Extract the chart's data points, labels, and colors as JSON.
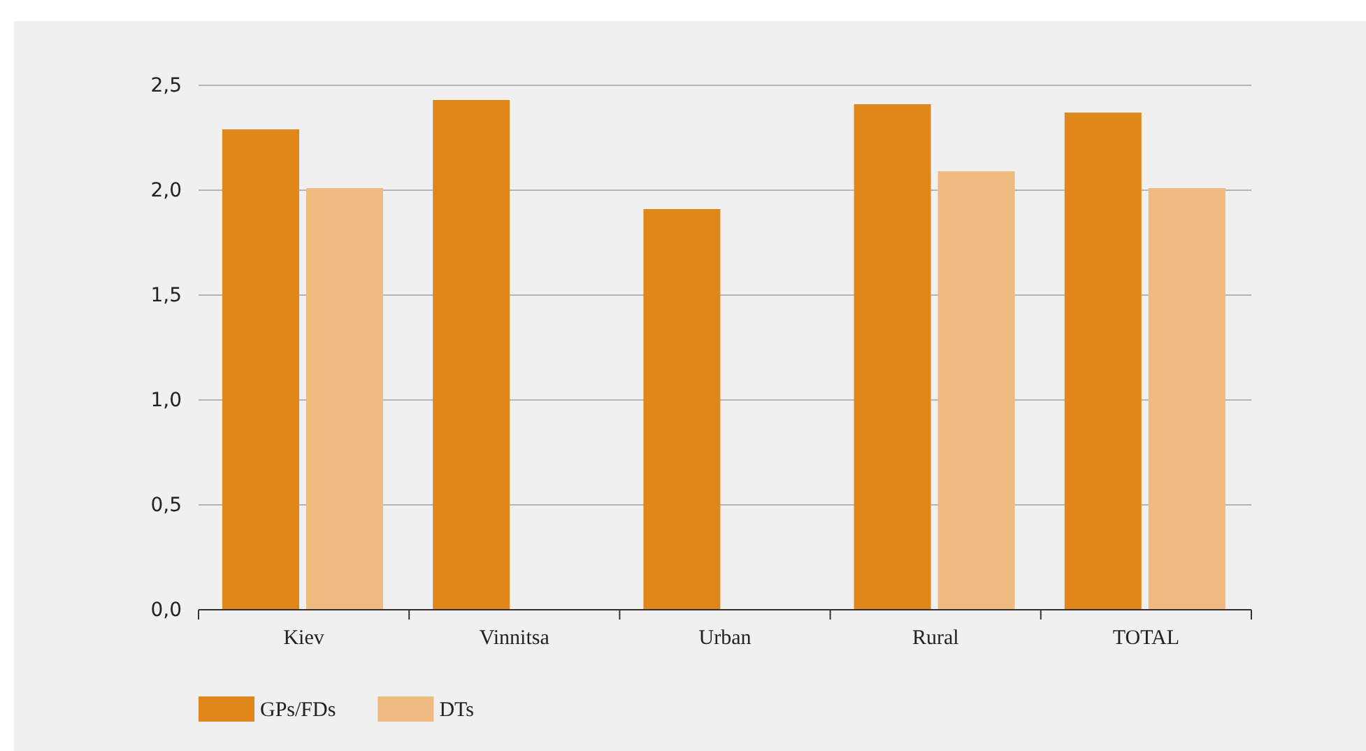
{
  "chart_data": {
    "type": "bar",
    "categories": [
      "Kiev",
      "Vinnitsa",
      "Urban",
      "Rural",
      "TOTAL"
    ],
    "series": [
      {
        "name": "GPs/FDs",
        "color": "#e0861a",
        "values": [
          2.29,
          2.43,
          1.91,
          2.41,
          2.37
        ]
      },
      {
        "name": "DTs",
        "color": "#f0bb80",
        "values": [
          2.01,
          null,
          null,
          2.09,
          2.01
        ]
      }
    ],
    "ylim": [
      0,
      2.5
    ],
    "yticks": [
      {
        "value": 0,
        "label": "0,0"
      },
      {
        "value": 0.5,
        "label": "0,5"
      },
      {
        "value": 1,
        "label": "1,0"
      },
      {
        "value": 1.5,
        "label": "1,5"
      },
      {
        "value": 2,
        "label": "2,0"
      },
      {
        "value": 2.5,
        "label": "2,5"
      }
    ],
    "grid": "y",
    "legend": "bottom"
  }
}
